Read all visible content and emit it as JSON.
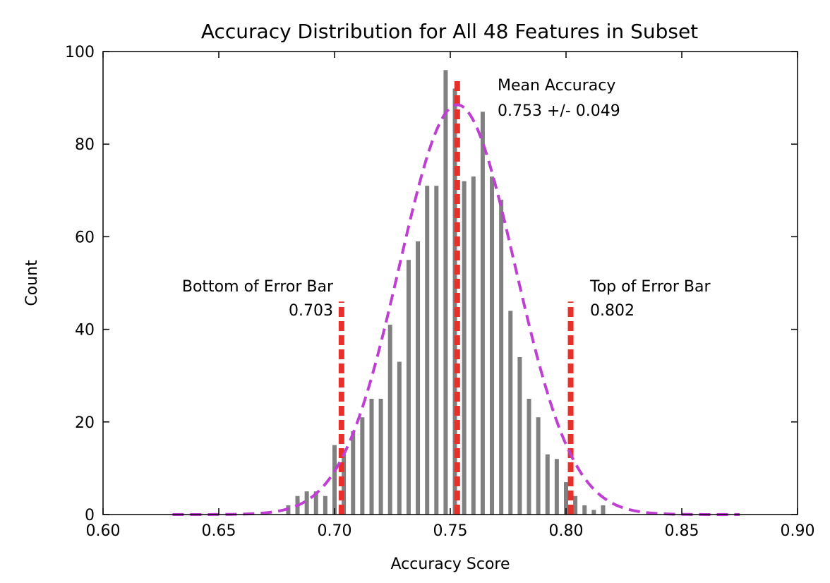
{
  "chart_data": {
    "type": "bar",
    "title": "Accuracy Distribution  for All 48 Features in Subset",
    "xlabel": "Accuracy Score",
    "ylabel": "Count",
    "xlim": [
      0.6,
      0.9
    ],
    "ylim": [
      0,
      100
    ],
    "x_ticks": [
      "0.60",
      "0.65",
      "0.70",
      "0.75",
      "0.80",
      "0.85",
      "0.90"
    ],
    "y_ticks": [
      "0",
      "20",
      "40",
      "60",
      "80",
      "100"
    ],
    "colors": {
      "bars": "#808080",
      "fit_curve": "#bf3fd3",
      "reference_lines": "#e8302a"
    },
    "bars": [
      {
        "x": 0.68,
        "y": 2
      },
      {
        "x": 0.684,
        "y": 4
      },
      {
        "x": 0.688,
        "y": 5
      },
      {
        "x": 0.692,
        "y": 5
      },
      {
        "x": 0.696,
        "y": 4
      },
      {
        "x": 0.7,
        "y": 15
      },
      {
        "x": 0.704,
        "y": 13
      },
      {
        "x": 0.708,
        "y": 18
      },
      {
        "x": 0.712,
        "y": 21
      },
      {
        "x": 0.716,
        "y": 25
      },
      {
        "x": 0.72,
        "y": 25
      },
      {
        "x": 0.724,
        "y": 41
      },
      {
        "x": 0.728,
        "y": 33
      },
      {
        "x": 0.732,
        "y": 55
      },
      {
        "x": 0.736,
        "y": 59
      },
      {
        "x": 0.74,
        "y": 71
      },
      {
        "x": 0.744,
        "y": 71
      },
      {
        "x": 0.748,
        "y": 96
      },
      {
        "x": 0.752,
        "y": 92
      },
      {
        "x": 0.756,
        "y": 72
      },
      {
        "x": 0.76,
        "y": 73
      },
      {
        "x": 0.764,
        "y": 87
      },
      {
        "x": 0.768,
        "y": 73
      },
      {
        "x": 0.772,
        "y": 68
      },
      {
        "x": 0.776,
        "y": 44
      },
      {
        "x": 0.78,
        "y": 34
      },
      {
        "x": 0.784,
        "y": 25
      },
      {
        "x": 0.788,
        "y": 21
      },
      {
        "x": 0.792,
        "y": 13
      },
      {
        "x": 0.796,
        "y": 12
      },
      {
        "x": 0.8,
        "y": 7
      },
      {
        "x": 0.804,
        "y": 4
      },
      {
        "x": 0.808,
        "y": 2
      },
      {
        "x": 0.812,
        "y": 1
      },
      {
        "x": 0.816,
        "y": 2
      }
    ],
    "fit_curve": {
      "style": "dashed",
      "x_range": [
        0.63,
        0.875
      ],
      "mean": 0.753,
      "std": 0.025,
      "peak": 88.5
    },
    "reference_lines": [
      {
        "x": 0.703,
        "ymax": 46
      },
      {
        "x": 0.753,
        "ymax": 94
      },
      {
        "x": 0.802,
        "ymax": 46
      }
    ],
    "annotations": {
      "bottom_line1": "Bottom of Error Bar",
      "bottom_line2": "0.703",
      "mean_line1": "Mean Accuracy",
      "mean_line2": "0.753 +/- 0.049",
      "top_line1": "Top of Error Bar",
      "top_line2": "0.802"
    }
  }
}
